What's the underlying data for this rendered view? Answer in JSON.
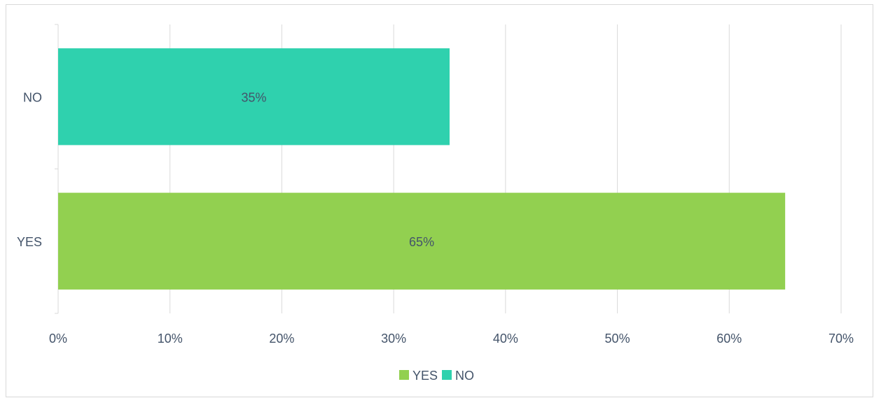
{
  "chart_data": {
    "type": "bar",
    "orientation": "horizontal",
    "categories": [
      "NO",
      "YES"
    ],
    "series": [
      {
        "name": "YES",
        "values": [
          null,
          65
        ],
        "color": "#92d050"
      },
      {
        "name": "NO",
        "values": [
          35,
          null
        ],
        "color": "#2fd1ae"
      }
    ],
    "data_labels": [
      "35%",
      "65%"
    ],
    "x_ticks": [
      "0%",
      "10%",
      "20%",
      "30%",
      "40%",
      "50%",
      "60%",
      "70%"
    ],
    "xlim": [
      0,
      70
    ],
    "title": "",
    "xlabel": "",
    "ylabel": "",
    "grid": true,
    "legend_position": "bottom"
  },
  "legend": [
    {
      "label": "YES",
      "color": "#92d050"
    },
    {
      "label": "NO",
      "color": "#2fd1ae"
    }
  ]
}
